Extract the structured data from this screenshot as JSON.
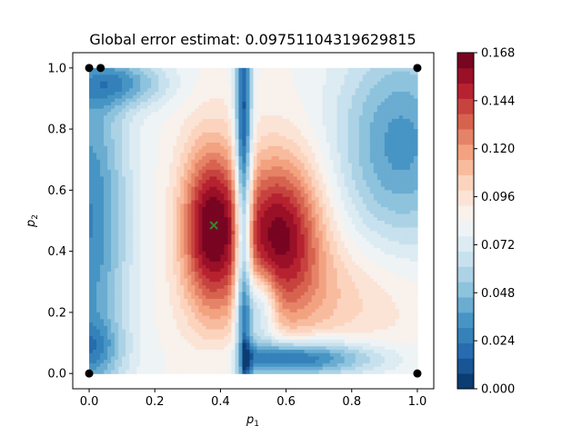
{
  "chart_data": {
    "type": "heatmap",
    "title": "Global error estimat: 0.09751104319629815",
    "xlabel": {
      "base": "p",
      "sub": "1"
    },
    "ylabel": {
      "base": "p",
      "sub": "2"
    },
    "xlim": [
      -0.05,
      1.05
    ],
    "ylim": [
      -0.05,
      1.05
    ],
    "x_ticks": [
      "0.0",
      "0.2",
      "0.4",
      "0.6",
      "0.8",
      "1.0"
    ],
    "y_ticks": [
      "0.0",
      "0.2",
      "0.4",
      "0.6",
      "0.8",
      "1.0"
    ],
    "colorbar": {
      "min": 0.0,
      "max": 0.168,
      "levels": 22,
      "ticks": [
        "0.000",
        "0.024",
        "0.048",
        "0.072",
        "0.096",
        "0.120",
        "0.144",
        "0.168"
      ],
      "colormap": "RdBu_r"
    },
    "sample_points": [
      [
        0.0,
        0.0
      ],
      [
        0.0,
        1.0
      ],
      [
        0.035,
        1.0
      ],
      [
        1.0,
        1.0
      ],
      [
        1.0,
        0.0
      ]
    ],
    "marker_x": [
      0.38,
      0.485
    ],
    "marker_color": "#2e8b2e",
    "point_color": "#000000",
    "field_peaks": [
      {
        "x": 0.38,
        "y": 0.46,
        "value": 0.163
      },
      {
        "x": 0.58,
        "y": 0.47,
        "value": 0.158
      }
    ]
  }
}
